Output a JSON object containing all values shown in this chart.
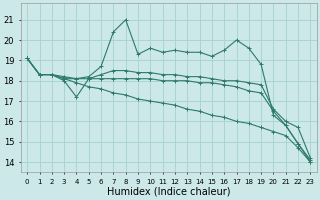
{
  "xlabel": "Humidex (Indice chaleur)",
  "background_color": "#cce8e8",
  "grid_color": "#aad4d4",
  "line_color": "#2d7a6a",
  "ylim": [
    13.5,
    21.8
  ],
  "xlim": [
    -0.5,
    23.5
  ],
  "yticks": [
    14,
    15,
    16,
    17,
    18,
    19,
    20,
    21
  ],
  "xticks": [
    0,
    1,
    2,
    3,
    4,
    5,
    6,
    7,
    8,
    9,
    10,
    11,
    12,
    13,
    14,
    15,
    16,
    17,
    18,
    19,
    20,
    21,
    22,
    23
  ],
  "line1": [
    19.1,
    18.3,
    18.3,
    18.2,
    18.1,
    18.2,
    18.7,
    20.4,
    21.0,
    19.3,
    19.6,
    19.4,
    19.5,
    19.4,
    19.4,
    19.2,
    19.5,
    20.0,
    19.6,
    18.8,
    16.3,
    15.8,
    14.9,
    14.1
  ],
  "line2": [
    19.1,
    18.3,
    18.3,
    18.0,
    17.2,
    18.1,
    18.3,
    18.5,
    18.5,
    18.4,
    18.4,
    18.3,
    18.3,
    18.2,
    18.2,
    18.1,
    18.0,
    18.0,
    17.9,
    17.8,
    16.6,
    16.0,
    15.7,
    14.2
  ],
  "line3": [
    19.1,
    18.3,
    18.3,
    18.1,
    18.1,
    18.1,
    18.1,
    18.1,
    18.1,
    18.1,
    18.1,
    18.0,
    18.0,
    18.0,
    17.9,
    17.9,
    17.8,
    17.7,
    17.5,
    17.4,
    16.5,
    15.8,
    14.9,
    14.0
  ],
  "line4": [
    19.1,
    18.3,
    18.3,
    18.1,
    17.9,
    17.7,
    17.6,
    17.4,
    17.3,
    17.1,
    17.0,
    16.9,
    16.8,
    16.6,
    16.5,
    16.3,
    16.2,
    16.0,
    15.9,
    15.7,
    15.5,
    15.3,
    14.7,
    14.0
  ]
}
